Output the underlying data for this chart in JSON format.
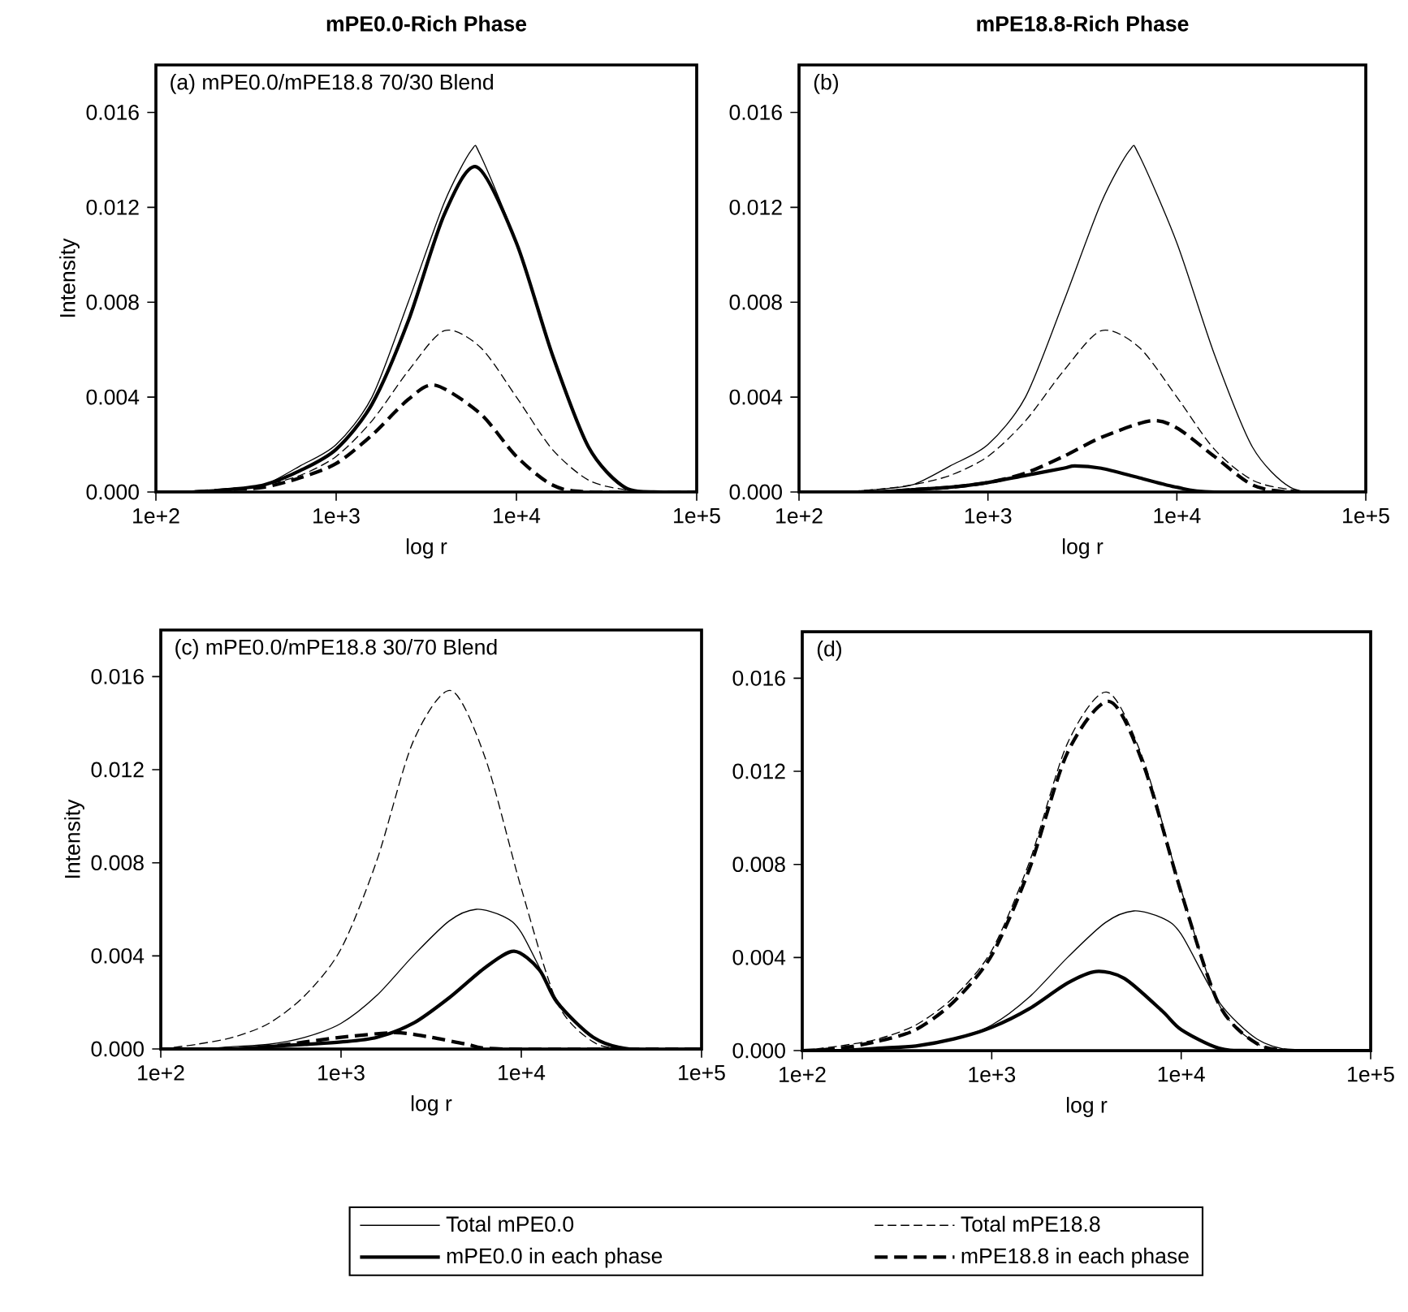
{
  "chart_data": [
    {
      "type": "line",
      "title": "mPE0.0-Rich Phase",
      "xlabel": "log r",
      "ylabel": "Intensity",
      "annotations": [
        "(a) mPE0.0/mPE18.8 70/30 Blend"
      ],
      "log": "x",
      "xlim": [
        100,
        100000
      ],
      "xticks": [
        {
          "value": 100,
          "label": "1e+2"
        },
        {
          "value": 1000,
          "label": "1e+3"
        },
        {
          "value": 10000,
          "label": "1e+4"
        },
        {
          "value": 100000,
          "label": "1e+5"
        }
      ],
      "ylim": [
        0,
        0.018
      ],
      "yticks": [
        {
          "value": 0,
          "label": "0.000"
        },
        {
          "value": 0.004,
          "label": "0.004"
        },
        {
          "value": 0.008,
          "label": "0.008"
        },
        {
          "value": 0.012,
          "label": "0.012"
        },
        {
          "value": 0.016,
          "label": "0.016"
        }
      ],
      "grid": false,
      "legend": false,
      "series": [
        {
          "color": "#000000",
          "line_style": "solid",
          "x": [
            100,
            158,
            251,
            398,
            631,
            1000,
            1580,
            2510,
            3980,
            5620,
            6310,
            10000,
            15800,
            25100,
            39800,
            63100,
            100000
          ],
          "values": [
            0,
            0,
            0.0001,
            0.0003,
            0.0011,
            0.002,
            0.004,
            0.008,
            0.0122,
            0.0144,
            0.0142,
            0.0105,
            0.0058,
            0.0019,
            0.0002,
            0,
            0
          ]
        },
        {
          "color": "#000000",
          "line_style": "dashed",
          "x": [
            100,
            158,
            251,
            398,
            631,
            1000,
            1580,
            2510,
            3980,
            6310,
            10000,
            15800,
            25100,
            39800,
            63100,
            100000
          ],
          "values": [
            0,
            0,
            0.0001,
            0.0003,
            0.0007,
            0.0015,
            0.003,
            0.0051,
            0.0068,
            0.0061,
            0.004,
            0.0018,
            0.0005,
            0.0001,
            0,
            0
          ]
        },
        {
          "color": "#000000",
          "line_style": "solid",
          "x": [
            100,
            158,
            251,
            398,
            631,
            1000,
            1580,
            2510,
            3980,
            6030,
            10000,
            15800,
            25100,
            39800,
            63100,
            100000
          ],
          "values": [
            0,
            0,
            0.0001,
            0.0003,
            0.0009,
            0.0018,
            0.0037,
            0.0072,
            0.0117,
            0.0137,
            0.0105,
            0.0058,
            0.0019,
            0.0002,
            0,
            0
          ]
        },
        {
          "color": "#000000",
          "line_style": "dashed",
          "x": [
            100,
            158,
            251,
            398,
            631,
            1000,
            1580,
            2510,
            3550,
            6310,
            10000,
            15800,
            25100,
            100000
          ],
          "values": [
            0,
            0,
            0.0001,
            0.0002,
            0.0006,
            0.0012,
            0.0024,
            0.0039,
            0.0045,
            0.0033,
            0.0015,
            0.0003,
            0,
            0
          ]
        }
      ]
    },
    {
      "type": "line",
      "title": "mPE18.8-Rich Phase",
      "xlabel": "log r",
      "annotations": [
        "(b)"
      ],
      "log": "x",
      "xlim": [
        100,
        100000
      ],
      "xticks": [
        {
          "value": 100,
          "label": "1e+2"
        },
        {
          "value": 1000,
          "label": "1e+3"
        },
        {
          "value": 10000,
          "label": "1e+4"
        },
        {
          "value": 100000,
          "label": "1e+5"
        }
      ],
      "ylim": [
        0,
        0.018
      ],
      "yticks": [
        {
          "value": 0,
          "label": "0.000"
        },
        {
          "value": 0.004,
          "label": "0.004"
        },
        {
          "value": 0.008,
          "label": "0.008"
        },
        {
          "value": 0.012,
          "label": "0.012"
        },
        {
          "value": 0.016,
          "label": "0.016"
        }
      ],
      "grid": false,
      "legend": false,
      "series": [
        {
          "color": "#000000",
          "line_style": "solid",
          "x": [
            100,
            158,
            251,
            398,
            631,
            1000,
            1580,
            2510,
            3980,
            5620,
            6310,
            10000,
            15800,
            25100,
            39800,
            63100,
            100000
          ],
          "values": [
            0,
            0,
            0.0001,
            0.0003,
            0.0011,
            0.002,
            0.004,
            0.008,
            0.0122,
            0.0144,
            0.0142,
            0.0105,
            0.0058,
            0.0019,
            0.0002,
            0,
            0
          ]
        },
        {
          "color": "#000000",
          "line_style": "dashed",
          "x": [
            100,
            158,
            251,
            398,
            631,
            1000,
            1580,
            2510,
            3980,
            6310,
            10000,
            15800,
            25100,
            39800,
            63100,
            100000
          ],
          "values": [
            0,
            0,
            0.0001,
            0.0003,
            0.0007,
            0.0015,
            0.003,
            0.0051,
            0.0068,
            0.0061,
            0.004,
            0.0018,
            0.0005,
            0.0001,
            0,
            0
          ]
        },
        {
          "color": "#000000",
          "line_style": "solid",
          "x": [
            100,
            251,
            398,
            631,
            1000,
            1580,
            2510,
            2880,
            3980,
            6310,
            10000,
            15800,
            100000
          ],
          "values": [
            0,
            0,
            0.0001,
            0.0002,
            0.0004,
            0.0007,
            0.001,
            0.0011,
            0.001,
            0.0006,
            0.0002,
            0,
            0
          ]
        },
        {
          "color": "#000000",
          "line_style": "dashed",
          "x": [
            100,
            251,
            398,
            631,
            1000,
            1580,
            2510,
            3980,
            7240,
            10000,
            15800,
            25100,
            39800,
            100000
          ],
          "values": [
            0,
            0,
            0.0001,
            0.0002,
            0.0004,
            0.0008,
            0.0015,
            0.0023,
            0.003,
            0.0027,
            0.0015,
            0.0003,
            0,
            0
          ]
        }
      ]
    },
    {
      "type": "line",
      "xlabel": "log r",
      "ylabel": "Intensity",
      "annotations": [
        "(c) mPE0.0/mPE18.8 30/70 Blend"
      ],
      "log": "x",
      "xlim": [
        100,
        100000
      ],
      "xticks": [
        {
          "value": 100,
          "label": "1e+2"
        },
        {
          "value": 1000,
          "label": "1e+3"
        },
        {
          "value": 10000,
          "label": "1e+4"
        },
        {
          "value": 100000,
          "label": "1e+5"
        }
      ],
      "ylim": [
        0,
        0.018
      ],
      "yticks": [
        {
          "value": 0,
          "label": "0.000"
        },
        {
          "value": 0.004,
          "label": "0.004"
        },
        {
          "value": 0.008,
          "label": "0.008"
        },
        {
          "value": 0.012,
          "label": "0.012"
        },
        {
          "value": 0.016,
          "label": "0.016"
        }
      ],
      "grid": false,
      "legend": false,
      "series": [
        {
          "color": "#000000",
          "line_style": "solid",
          "x": [
            100,
            158,
            251,
            398,
            631,
            1000,
            1580,
            2510,
            3980,
            5620,
            7940,
            10000,
            15800,
            25100,
            39800,
            100000
          ],
          "values": [
            0,
            0,
            0.0001,
            0.0002,
            0.0005,
            0.0011,
            0.0023,
            0.004,
            0.0055,
            0.006,
            0.0057,
            0.005,
            0.0021,
            0.0005,
            0,
            0
          ]
        },
        {
          "color": "#000000",
          "line_style": "dashed",
          "x": [
            100,
            158,
            251,
            398,
            631,
            1000,
            1580,
            2510,
            4070,
            6310,
            10000,
            15800,
            25100,
            39800,
            100000
          ],
          "values": [
            0,
            0.0002,
            0.0005,
            0.0011,
            0.0023,
            0.0043,
            0.0081,
            0.0132,
            0.0154,
            0.0125,
            0.0069,
            0.002,
            0.0003,
            0,
            0
          ]
        },
        {
          "color": "#000000",
          "line_style": "solid",
          "x": [
            100,
            251,
            398,
            631,
            1000,
            1580,
            2510,
            3980,
            6310,
            9120,
            12600,
            15800,
            25100,
            39800,
            100000
          ],
          "values": [
            0,
            0,
            0.0001,
            0.0002,
            0.0003,
            0.0005,
            0.0011,
            0.0022,
            0.0035,
            0.0042,
            0.0034,
            0.002,
            0.0005,
            0,
            0
          ]
        },
        {
          "color": "#000000",
          "line_style": "dashed",
          "x": [
            100,
            251,
            398,
            631,
            1000,
            2000,
            3160,
            5010,
            7940,
            100000
          ],
          "values": [
            0,
            0,
            0.0001,
            0.0003,
            0.0005,
            0.0007,
            0.0005,
            0.0002,
            0,
            0
          ]
        }
      ]
    },
    {
      "type": "line",
      "xlabel": "log r",
      "annotations": [
        "(d)"
      ],
      "log": "x",
      "xlim": [
        100,
        100000
      ],
      "xticks": [
        {
          "value": 100,
          "label": "1e+2"
        },
        {
          "value": 1000,
          "label": "1e+3"
        },
        {
          "value": 10000,
          "label": "1e+4"
        },
        {
          "value": 100000,
          "label": "1e+5"
        }
      ],
      "ylim": [
        0,
        0.018
      ],
      "yticks": [
        {
          "value": 0,
          "label": "0.000"
        },
        {
          "value": 0.004,
          "label": "0.004"
        },
        {
          "value": 0.008,
          "label": "0.008"
        },
        {
          "value": 0.012,
          "label": "0.012"
        },
        {
          "value": 0.016,
          "label": "0.016"
        }
      ],
      "grid": false,
      "legend": "bottom",
      "series": [
        {
          "name": "Total mPE0.0",
          "color": "#000000",
          "line_style": "solid",
          "x": [
            100,
            158,
            251,
            398,
            631,
            1000,
            1580,
            2510,
            3980,
            5620,
            7940,
            10000,
            15800,
            25100,
            39800,
            100000
          ],
          "values": [
            0,
            0,
            0.0001,
            0.0002,
            0.0005,
            0.0011,
            0.0023,
            0.004,
            0.0055,
            0.006,
            0.0057,
            0.005,
            0.0021,
            0.0005,
            0,
            0
          ]
        },
        {
          "name": "Total mPE18.8",
          "color": "#000000",
          "line_style": "dashed",
          "x": [
            100,
            158,
            251,
            398,
            631,
            1000,
            1580,
            2510,
            4070,
            6310,
            10000,
            15800,
            25100,
            39800,
            100000
          ],
          "values": [
            0,
            0.0002,
            0.0005,
            0.0011,
            0.0023,
            0.0043,
            0.0081,
            0.0132,
            0.0154,
            0.0125,
            0.0069,
            0.002,
            0.0003,
            0,
            0
          ]
        },
        {
          "name": "mPE0.0 in each phase",
          "color": "#000000",
          "line_style": "solid",
          "x": [
            100,
            158,
            251,
            398,
            631,
            1000,
            1580,
            2510,
            3550,
            5010,
            7940,
            10000,
            15800,
            25100,
            100000
          ],
          "values": [
            0,
            0,
            0.0001,
            0.0002,
            0.0005,
            0.001,
            0.0018,
            0.0029,
            0.0034,
            0.0031,
            0.0017,
            0.0009,
            0.0001,
            0,
            0
          ]
        },
        {
          "name": "mPE18.8 in each phase",
          "color": "#000000",
          "line_style": "dashed",
          "x": [
            100,
            158,
            251,
            398,
            631,
            1000,
            1580,
            2510,
            4170,
            6310,
            10000,
            15800,
            25100,
            39800,
            100000
          ],
          "values": [
            0,
            0.0001,
            0.0004,
            0.0009,
            0.0021,
            0.0041,
            0.0078,
            0.0128,
            0.015,
            0.0123,
            0.0068,
            0.002,
            0.0003,
            0,
            0
          ]
        }
      ]
    }
  ]
}
